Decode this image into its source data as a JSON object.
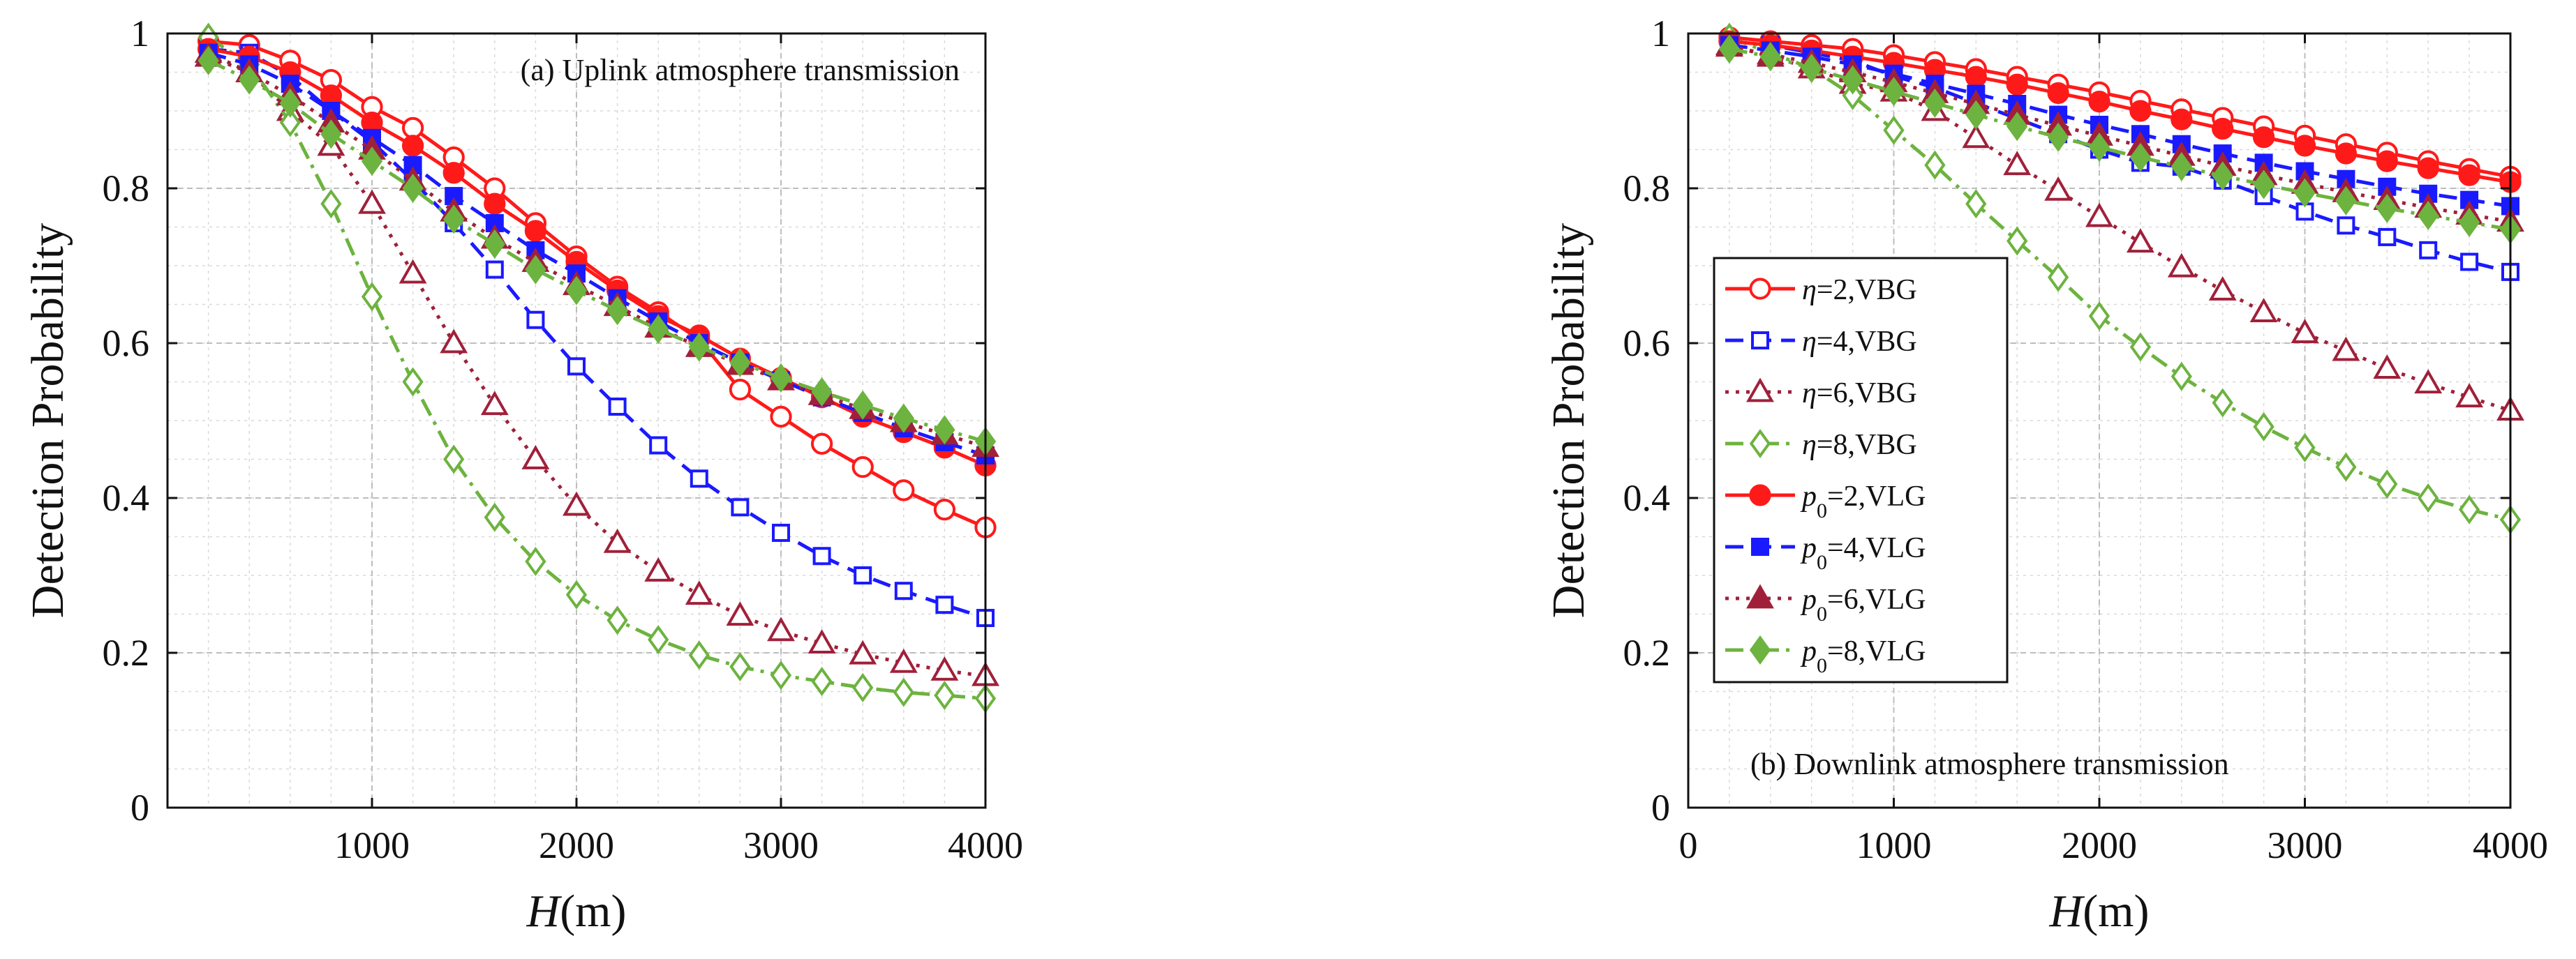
{
  "chart_data": [
    {
      "type": "line",
      "panel": "a",
      "title": "(a) Uplink atmosphere transmission",
      "xlabel_var": "H",
      "xlabel_unit": "(m)",
      "ylabel": "Detection Probability",
      "xlim": [
        0,
        4000
      ],
      "ylim": [
        0,
        1
      ],
      "xticks": [
        1000,
        2000,
        3000,
        4000
      ],
      "xtick_labels": [
        "1000",
        "2000",
        "3000",
        "4000"
      ],
      "yticks": [
        0,
        0.2,
        0.4,
        0.6,
        0.8,
        1
      ],
      "ytick_labels": [
        "0",
        "0.2",
        "0.4",
        "0.6",
        "0.8",
        "1"
      ],
      "grid": true,
      "x": [
        200,
        400,
        600,
        800,
        1000,
        1200,
        1400,
        1600,
        1800,
        2000,
        2200,
        2400,
        2600,
        2800,
        3000,
        3200,
        3400,
        3600,
        3800,
        4000
      ],
      "series": [
        {
          "name": "η=2,VBG",
          "color": "#ff1a1a",
          "marker": "circle-open",
          "dash": "solid",
          "values": [
            0.99,
            0.985,
            0.965,
            0.94,
            0.905,
            0.878,
            0.84,
            0.8,
            0.755,
            0.712,
            0.673,
            0.64,
            0.605,
            0.54,
            0.505,
            0.47,
            0.44,
            0.41,
            0.385,
            0.362
          ]
        },
        {
          "name": "η=4,VBG",
          "color": "#1a1aff",
          "marker": "square-open",
          "dash": "dash",
          "values": [
            0.98,
            0.975,
            0.945,
            0.9,
            0.86,
            0.81,
            0.755,
            0.695,
            0.63,
            0.57,
            0.518,
            0.468,
            0.425,
            0.388,
            0.355,
            0.325,
            0.3,
            0.28,
            0.262,
            0.245
          ]
        },
        {
          "name": "η=6,VBG",
          "color": "#a0203a",
          "marker": "triangle-open",
          "dash": "dot",
          "values": [
            0.975,
            0.95,
            0.9,
            0.855,
            0.78,
            0.69,
            0.6,
            0.52,
            0.45,
            0.39,
            0.342,
            0.305,
            0.275,
            0.248,
            0.228,
            0.212,
            0.198,
            0.187,
            0.177,
            0.17
          ]
        },
        {
          "name": "η=8,VBG",
          "color": "#6db33f",
          "marker": "diamond-open",
          "dash": "dashdot",
          "values": [
            0.995,
            0.96,
            0.885,
            0.78,
            0.66,
            0.55,
            0.45,
            0.375,
            0.318,
            0.275,
            0.242,
            0.217,
            0.197,
            0.182,
            0.171,
            0.163,
            0.155,
            0.149,
            0.145,
            0.141
          ]
        },
        {
          "name": "p0=2,VLG",
          "color": "#ff1a1a",
          "marker": "circle-filled",
          "dash": "solid",
          "values": [
            0.98,
            0.97,
            0.95,
            0.92,
            0.885,
            0.855,
            0.82,
            0.78,
            0.745,
            0.705,
            0.668,
            0.635,
            0.61,
            0.58,
            0.555,
            0.53,
            0.505,
            0.485,
            0.465,
            0.442
          ]
        },
        {
          "name": "p0=4,VLG",
          "color": "#1a1aff",
          "marker": "square-filled",
          "dash": "dash",
          "values": [
            0.975,
            0.96,
            0.935,
            0.9,
            0.865,
            0.83,
            0.79,
            0.755,
            0.72,
            0.69,
            0.658,
            0.628,
            0.6,
            0.575,
            0.552,
            0.53,
            0.51,
            0.49,
            0.472,
            0.455
          ]
        },
        {
          "name": "p0=6,VLG",
          "color": "#a0203a",
          "marker": "triangle-filled",
          "dash": "dot",
          "values": [
            0.97,
            0.95,
            0.92,
            0.885,
            0.85,
            0.81,
            0.77,
            0.735,
            0.705,
            0.675,
            0.648,
            0.62,
            0.595,
            0.572,
            0.552,
            0.533,
            0.515,
            0.498,
            0.482,
            0.466
          ]
        },
        {
          "name": "p0=8,VLG",
          "color": "#6db33f",
          "marker": "diamond-filled",
          "dash": "dashdot",
          "values": [
            0.965,
            0.94,
            0.91,
            0.87,
            0.835,
            0.8,
            0.76,
            0.728,
            0.695,
            0.668,
            0.642,
            0.618,
            0.595,
            0.575,
            0.555,
            0.537,
            0.52,
            0.503,
            0.488,
            0.473
          ]
        }
      ]
    },
    {
      "type": "line",
      "panel": "b",
      "title": "(b) Downlink atmosphere transmission",
      "xlabel_var": "H",
      "xlabel_unit": "(m)",
      "ylabel": "Detection Probability",
      "xlim": [
        0,
        4000
      ],
      "ylim": [
        0,
        1
      ],
      "xticks": [
        0,
        1000,
        2000,
        3000,
        4000
      ],
      "xtick_labels": [
        "0",
        "1000",
        "2000",
        "3000",
        "4000"
      ],
      "yticks": [
        0,
        0.2,
        0.4,
        0.6,
        0.8,
        1
      ],
      "ytick_labels": [
        "0",
        "0.2",
        "0.4",
        "0.6",
        "0.8",
        "1"
      ],
      "grid": true,
      "legend": "left-middle",
      "x": [
        200,
        400,
        600,
        800,
        1000,
        1200,
        1400,
        1600,
        1800,
        2000,
        2200,
        2400,
        2600,
        2800,
        3000,
        3200,
        3400,
        3600,
        3800,
        4000
      ],
      "series": [
        {
          "name": "η=2,VBG",
          "color": "#ff1a1a",
          "marker": "circle-open",
          "dash": "solid",
          "values": [
            0.995,
            0.99,
            0.985,
            0.98,
            0.972,
            0.963,
            0.954,
            0.944,
            0.934,
            0.924,
            0.913,
            0.902,
            0.891,
            0.88,
            0.868,
            0.857,
            0.846,
            0.835,
            0.825,
            0.815
          ]
        },
        {
          "name": "η=4,VBG",
          "color": "#1a1aff",
          "marker": "square-open",
          "dash": "dash",
          "values": [
            0.99,
            0.985,
            0.975,
            0.965,
            0.945,
            0.93,
            0.91,
            0.89,
            0.87,
            0.85,
            0.833,
            0.828,
            0.81,
            0.79,
            0.77,
            0.752,
            0.737,
            0.72,
            0.705,
            0.692
          ]
        },
        {
          "name": "η=6,VBG",
          "color": "#a0203a",
          "marker": "triangle-open",
          "dash": "dot",
          "values": [
            0.985,
            0.97,
            0.955,
            0.935,
            0.925,
            0.9,
            0.865,
            0.83,
            0.797,
            0.763,
            0.73,
            0.698,
            0.668,
            0.64,
            0.613,
            0.59,
            0.567,
            0.548,
            0.53,
            0.513
          ]
        },
        {
          "name": "η=8,VBG",
          "color": "#6db33f",
          "marker": "diamond-open",
          "dash": "dashdot",
          "values": [
            0.995,
            0.975,
            0.955,
            0.92,
            0.875,
            0.83,
            0.78,
            0.732,
            0.685,
            0.635,
            0.595,
            0.557,
            0.523,
            0.492,
            0.465,
            0.44,
            0.418,
            0.4,
            0.385,
            0.372
          ]
        },
        {
          "name": "p0=2,VLG",
          "color": "#ff1a1a",
          "marker": "circle-filled",
          "dash": "solid",
          "values": [
            0.99,
            0.985,
            0.978,
            0.97,
            0.962,
            0.953,
            0.944,
            0.934,
            0.923,
            0.912,
            0.9,
            0.889,
            0.877,
            0.866,
            0.855,
            0.845,
            0.835,
            0.826,
            0.817,
            0.808
          ]
        },
        {
          "name": "p0=4,VLG",
          "color": "#1a1aff",
          "marker": "square-filled",
          "dash": "dash",
          "values": [
            0.985,
            0.978,
            0.97,
            0.96,
            0.948,
            0.935,
            0.922,
            0.909,
            0.895,
            0.882,
            0.87,
            0.857,
            0.845,
            0.833,
            0.822,
            0.812,
            0.802,
            0.793,
            0.785,
            0.777
          ]
        },
        {
          "name": "p0=6,VLG",
          "color": "#a0203a",
          "marker": "triangle-filled",
          "dash": "dot",
          "values": [
            0.983,
            0.973,
            0.962,
            0.95,
            0.937,
            0.923,
            0.909,
            0.895,
            0.881,
            0.868,
            0.855,
            0.842,
            0.829,
            0.817,
            0.806,
            0.795,
            0.785,
            0.775,
            0.766,
            0.757
          ]
        },
        {
          "name": "p0=8,VLG",
          "color": "#6db33f",
          "marker": "diamond-filled",
          "dash": "dashdot",
          "values": [
            0.98,
            0.97,
            0.955,
            0.94,
            0.925,
            0.91,
            0.895,
            0.88,
            0.866,
            0.853,
            0.84,
            0.828,
            0.816,
            0.805,
            0.794,
            0.784,
            0.774,
            0.765,
            0.756,
            0.747
          ]
        }
      ],
      "legend_entries": [
        {
          "symbol": "η",
          "text": "=2,VBG"
        },
        {
          "symbol": "η",
          "text": "=4,VBG"
        },
        {
          "symbol": "η",
          "text": "=6,VBG"
        },
        {
          "symbol": "η",
          "text": "=8,VBG"
        },
        {
          "symbol": "p",
          "sub": "0",
          "text": "=2,VLG"
        },
        {
          "symbol": "p",
          "sub": "0",
          "text": "=4,VLG"
        },
        {
          "symbol": "p",
          "sub": "0",
          "text": "=6,VLG"
        },
        {
          "symbol": "p",
          "sub": "0",
          "text": "=8,VLG"
        }
      ]
    }
  ]
}
